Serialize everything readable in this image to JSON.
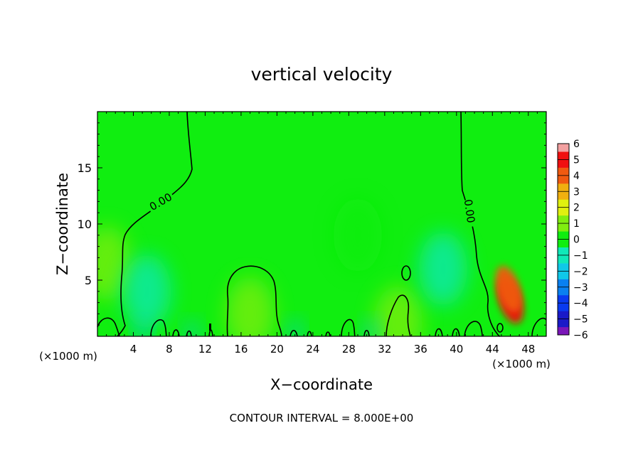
{
  "chart_data": {
    "type": "heatmap",
    "title": "vertical velocity",
    "xlabel": "X−coordinate",
    "ylabel": "Z−coordinate",
    "x_unit": "(×1000 m)",
    "xlim": [
      0,
      50
    ],
    "ylim": [
      0,
      20
    ],
    "x_ticks": [
      "4",
      "8",
      "12",
      "16",
      "20",
      "24",
      "28",
      "32",
      "36",
      "40",
      "44",
      "48"
    ],
    "y_ticks": [
      "5",
      "10",
      "15"
    ],
    "colorbar": {
      "ticks": [
        "6",
        "5",
        "4",
        "3",
        "2",
        "1",
        "0",
        "−1",
        "−2",
        "−3",
        "−4",
        "−5",
        "−6"
      ],
      "range": [
        -6,
        6
      ]
    },
    "contour_labels": [
      "0.00",
      "0.00"
    ],
    "contour_level": 0,
    "features": [
      {
        "x": 46,
        "z": 3.2,
        "value": 4.5
      },
      {
        "x": 45.8,
        "z": 4.2,
        "value": 3.8
      },
      {
        "x": 1,
        "z": 6.5,
        "value": 1.4
      },
      {
        "x": 17,
        "z": 2.0,
        "value": 0.7
      },
      {
        "x": 33.5,
        "z": 1.2,
        "value": 1.2
      },
      {
        "x": 5.5,
        "z": 4.0,
        "value": -1.3
      },
      {
        "x": 38.5,
        "z": 6.0,
        "value": -0.9
      },
      {
        "x": 29,
        "z": 9.0,
        "value": -0.5
      },
      {
        "x": 22,
        "z": 0.5,
        "value": -2.0
      },
      {
        "x": 5,
        "z": 0.4,
        "value": -2.2
      },
      {
        "x": 10.5,
        "z": 0.4,
        "value": -2.0
      },
      {
        "x": 30.5,
        "z": 0.5,
        "value": -1.8
      }
    ],
    "footer": "CONTOUR INTERVAL = 8.000E+00"
  }
}
